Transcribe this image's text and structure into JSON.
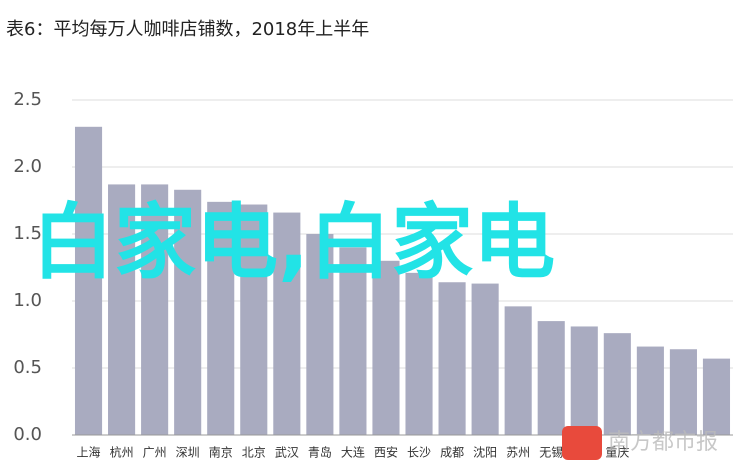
{
  "chart_data": {
    "type": "bar",
    "title": "表6：平均每万人咖啡店铺数，2018年上半年",
    "categories": [
      "上海",
      "杭州",
      "广州",
      "深圳",
      "南京",
      "北京",
      "武汉",
      "青岛",
      "大连",
      "西安",
      "长沙",
      "成都",
      "沈阳",
      "苏州",
      "无锡",
      null,
      "重庆",
      null,
      null,
      null
    ],
    "values": [
      2.3,
      1.87,
      1.87,
      1.83,
      1.74,
      1.72,
      1.66,
      1.5,
      1.4,
      1.3,
      1.21,
      1.14,
      1.13,
      0.96,
      0.85,
      0.81,
      0.76,
      0.66,
      0.64,
      0.57
    ],
    "color": "#a9abc0",
    "ylim": [
      0,
      2.5
    ],
    "yticks": [
      {
        "value": 0,
        "label": "0.0"
      },
      0.5,
      {
        "value": 1,
        "label": "1.0"
      },
      1.5,
      {
        "value": 2,
        "label": "2.0"
      },
      2.5
    ],
    "grid": true,
    "annotations": [
      "白家电,白家电",
      "南方都市报"
    ]
  }
}
